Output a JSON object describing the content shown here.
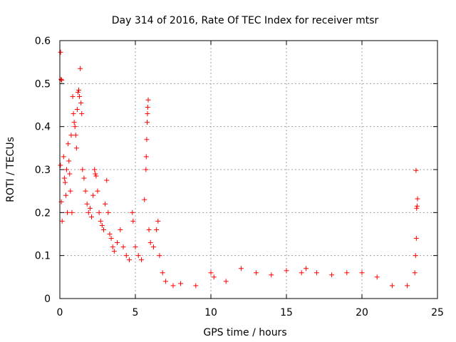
{
  "chart_data": {
    "type": "scatter",
    "title": "Day 314 of 2016, Rate Of TEC Index for receiver mtsr",
    "xlabel": "GPS time / hours",
    "ylabel": "ROTI / TECUs",
    "xlim": [
      0,
      25
    ],
    "ylim": [
      0,
      0.6
    ],
    "xticks": [
      0,
      5,
      10,
      15,
      20,
      25
    ],
    "yticks": [
      0,
      0.1,
      0.2,
      0.3,
      0.4,
      0.5,
      0.6
    ],
    "xtick_labels": [
      "0",
      "5",
      "10",
      "15",
      "20",
      "25"
    ],
    "ytick_labels": [
      "0",
      "0.1",
      "0.2",
      "0.3",
      "0.4",
      "0.5",
      "0.6"
    ],
    "grid": true,
    "marker": "+",
    "color": "#ff0000",
    "series": [
      {
        "name": "ROTI",
        "points": [
          [
            0.05,
            0.573
          ],
          [
            0.08,
            0.51
          ],
          [
            0.12,
            0.508
          ],
          [
            0.04,
            0.31
          ],
          [
            0.1,
            0.225
          ],
          [
            0.15,
            0.18
          ],
          [
            0.25,
            0.33
          ],
          [
            0.3,
            0.28
          ],
          [
            0.35,
            0.27
          ],
          [
            0.4,
            0.24
          ],
          [
            0.45,
            0.3
          ],
          [
            0.5,
            0.2
          ],
          [
            0.55,
            0.36
          ],
          [
            0.6,
            0.32
          ],
          [
            0.65,
            0.29
          ],
          [
            0.7,
            0.25
          ],
          [
            0.75,
            0.38
          ],
          [
            0.8,
            0.2
          ],
          [
            0.85,
            0.47
          ],
          [
            0.9,
            0.43
          ],
          [
            0.95,
            0.41
          ],
          [
            1.0,
            0.4
          ],
          [
            1.05,
            0.38
          ],
          [
            1.1,
            0.35
          ],
          [
            1.15,
            0.44
          ],
          [
            1.2,
            0.48
          ],
          [
            1.25,
            0.485
          ],
          [
            1.3,
            0.47
          ],
          [
            1.35,
            0.535
          ],
          [
            1.4,
            0.455
          ],
          [
            1.45,
            0.43
          ],
          [
            1.5,
            0.3
          ],
          [
            1.6,
            0.28
          ],
          [
            1.7,
            0.25
          ],
          [
            1.8,
            0.22
          ],
          [
            1.9,
            0.2
          ],
          [
            2.0,
            0.21
          ],
          [
            2.1,
            0.19
          ],
          [
            2.2,
            0.24
          ],
          [
            2.3,
            0.3
          ],
          [
            2.35,
            0.29
          ],
          [
            2.4,
            0.285
          ],
          [
            2.5,
            0.25
          ],
          [
            2.6,
            0.2
          ],
          [
            2.7,
            0.18
          ],
          [
            2.8,
            0.17
          ],
          [
            2.9,
            0.16
          ],
          [
            3.0,
            0.22
          ],
          [
            3.1,
            0.275
          ],
          [
            3.2,
            0.2
          ],
          [
            3.3,
            0.15
          ],
          [
            3.4,
            0.14
          ],
          [
            3.5,
            0.12
          ],
          [
            3.6,
            0.11
          ],
          [
            3.8,
            0.13
          ],
          [
            4.0,
            0.16
          ],
          [
            4.2,
            0.12
          ],
          [
            4.4,
            0.1
          ],
          [
            4.6,
            0.09
          ],
          [
            4.8,
            0.2
          ],
          [
            4.85,
            0.18
          ],
          [
            5.0,
            0.12
          ],
          [
            5.2,
            0.1
          ],
          [
            5.4,
            0.09
          ],
          [
            5.6,
            0.23
          ],
          [
            5.7,
            0.3
          ],
          [
            5.72,
            0.33
          ],
          [
            5.75,
            0.37
          ],
          [
            5.78,
            0.41
          ],
          [
            5.8,
            0.43
          ],
          [
            5.82,
            0.445
          ],
          [
            5.85,
            0.462
          ],
          [
            5.9,
            0.16
          ],
          [
            6.0,
            0.13
          ],
          [
            6.2,
            0.12
          ],
          [
            6.4,
            0.16
          ],
          [
            6.5,
            0.18
          ],
          [
            6.6,
            0.1
          ],
          [
            6.8,
            0.06
          ],
          [
            7.0,
            0.04
          ],
          [
            7.5,
            0.03
          ],
          [
            8.0,
            0.035
          ],
          [
            9.0,
            0.03
          ],
          [
            10.0,
            0.06
          ],
          [
            10.2,
            0.05
          ],
          [
            11.0,
            0.04
          ],
          [
            12.0,
            0.07
          ],
          [
            13.0,
            0.06
          ],
          [
            14.0,
            0.055
          ],
          [
            15.0,
            0.065
          ],
          [
            16.0,
            0.06
          ],
          [
            16.3,
            0.07
          ],
          [
            17.0,
            0.06
          ],
          [
            18.0,
            0.055
          ],
          [
            19.0,
            0.06
          ],
          [
            20.0,
            0.06
          ],
          [
            21.0,
            0.05
          ],
          [
            22.0,
            0.03
          ],
          [
            23.0,
            0.03
          ],
          [
            23.5,
            0.06
          ],
          [
            23.55,
            0.1
          ],
          [
            23.6,
            0.14
          ],
          [
            23.62,
            0.21
          ],
          [
            23.65,
            0.215
          ],
          [
            23.68,
            0.232
          ],
          [
            23.58,
            0.298
          ]
        ]
      }
    ]
  }
}
